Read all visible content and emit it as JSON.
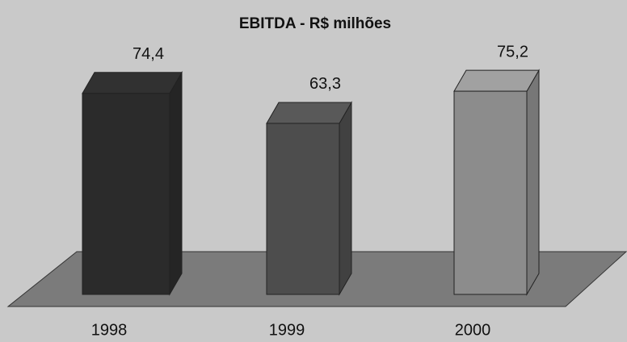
{
  "chart_data": {
    "type": "bar3d",
    "title": "EBITDA - R$ milhões",
    "categories": [
      "1998",
      "1999",
      "2000"
    ],
    "values": [
      74.4,
      63.3,
      75.2
    ],
    "value_labels": [
      "74,4",
      "63,3",
      "75,2"
    ],
    "colors": [
      "#2b2b2b",
      "#4d4d4d",
      "#8c8c8c"
    ]
  }
}
